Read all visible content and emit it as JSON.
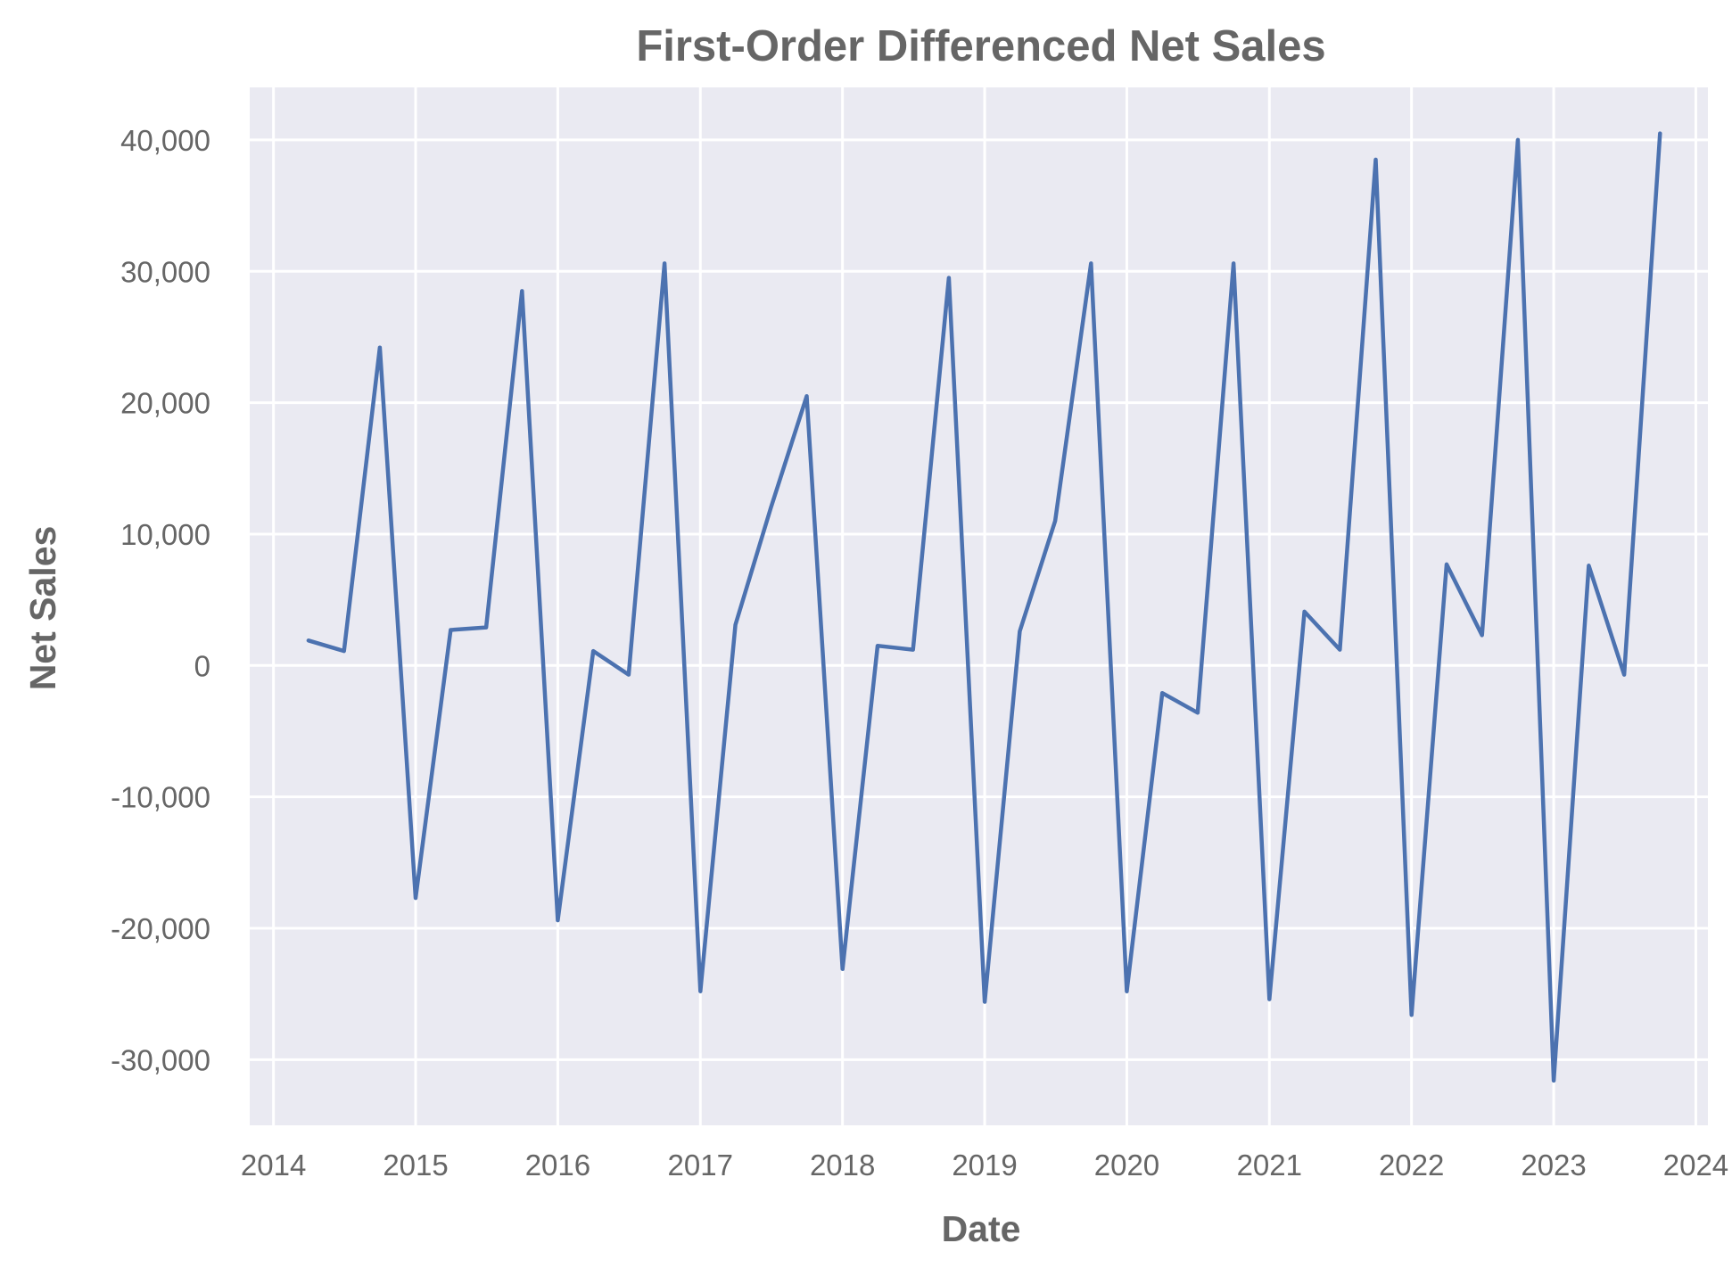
{
  "chart_data": {
    "type": "line",
    "title": "First-Order Differenced Net Sales",
    "xlabel": "Date",
    "ylabel": "Net Sales",
    "grid": true,
    "legend": "none",
    "background_color": "#eaeaf2",
    "series_color": "#4c72b0",
    "xlim": [
      "2013-11-01",
      "2024-02-01"
    ],
    "ylim": [
      -35000,
      44000
    ],
    "x_ticks": [
      "2014",
      "2015",
      "2016",
      "2017",
      "2018",
      "2019",
      "2020",
      "2021",
      "2022",
      "2023",
      "2024"
    ],
    "y_ticks": [
      {
        "value": -30000,
        "label": "-30,000"
      },
      {
        "value": -20000,
        "label": "-20,000"
      },
      {
        "value": -10000,
        "label": "-10,000"
      },
      {
        "value": 0,
        "label": "0"
      },
      {
        "value": 10000,
        "label": "10,000"
      },
      {
        "value": 20000,
        "label": "20,000"
      },
      {
        "value": 30000,
        "label": "30,000"
      },
      {
        "value": 40000,
        "label": "40,000"
      }
    ],
    "series": [
      {
        "x": [
          "2014-04-01",
          "2014-07-01",
          "2014-10-01",
          "2015-01-01",
          "2015-04-01",
          "2015-07-01",
          "2015-10-01",
          "2016-01-01",
          "2016-04-01",
          "2016-07-01",
          "2016-10-01",
          "2017-01-01",
          "2017-04-01",
          "2017-07-01",
          "2017-10-01",
          "2018-01-01",
          "2018-04-01",
          "2018-07-01",
          "2018-10-01",
          "2019-01-01",
          "2019-04-01",
          "2019-07-01",
          "2019-10-01",
          "2020-01-01",
          "2020-04-01",
          "2020-07-01",
          "2020-10-01",
          "2021-01-01",
          "2021-04-01",
          "2021-07-01",
          "2021-10-01",
          "2022-01-01",
          "2022-04-01",
          "2022-07-01",
          "2022-10-01",
          "2023-01-01",
          "2023-04-01",
          "2023-07-01",
          "2023-10-01"
        ],
        "values": [
          1900,
          1100,
          24200,
          -17700,
          2700,
          2900,
          28500,
          -19400,
          1100,
          -700,
          30600,
          -24800,
          3100,
          12000,
          20500,
          -23100,
          1500,
          1200,
          29500,
          -25600,
          2600,
          11000,
          30600,
          -24800,
          -2100,
          -3600,
          30600,
          -25400,
          4100,
          1200,
          38500,
          -26600,
          7700,
          2300,
          40000,
          -31600,
          7600,
          -700,
          40500
        ]
      }
    ]
  }
}
